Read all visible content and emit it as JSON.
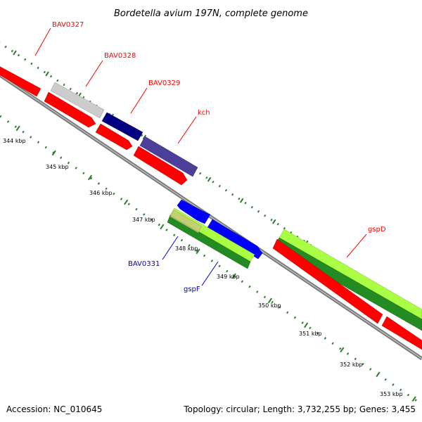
{
  "title": "Bordetella avium 197N, complete genome",
  "footer": {
    "accession": "Accession: NC_010645",
    "topology": "Topology: circular; Length: 3,732,255 bp; Genes: 3,455"
  },
  "colors": {
    "red": "#ff0000",
    "blue": "#0000cc",
    "backbone": "#888888",
    "tick": "#2e7d2e"
  },
  "ticks": [
    "344 kbp",
    "345 kbp",
    "346 kbp",
    "347 kbp",
    "348 kbp",
    "349 kbp",
    "350 kbp",
    "351 kbp",
    "352 kbp",
    "353 kbp"
  ],
  "genes": [
    {
      "name": "BAV0327",
      "color": "red"
    },
    {
      "name": "BAV0328",
      "color": "red"
    },
    {
      "name": "BAV0329",
      "color": "red"
    },
    {
      "name": "kch",
      "color": "red"
    },
    {
      "name": "BAV0331",
      "color": "blue"
    },
    {
      "name": "gspF",
      "color": "blue"
    },
    {
      "name": "gspD",
      "color": "red"
    }
  ]
}
